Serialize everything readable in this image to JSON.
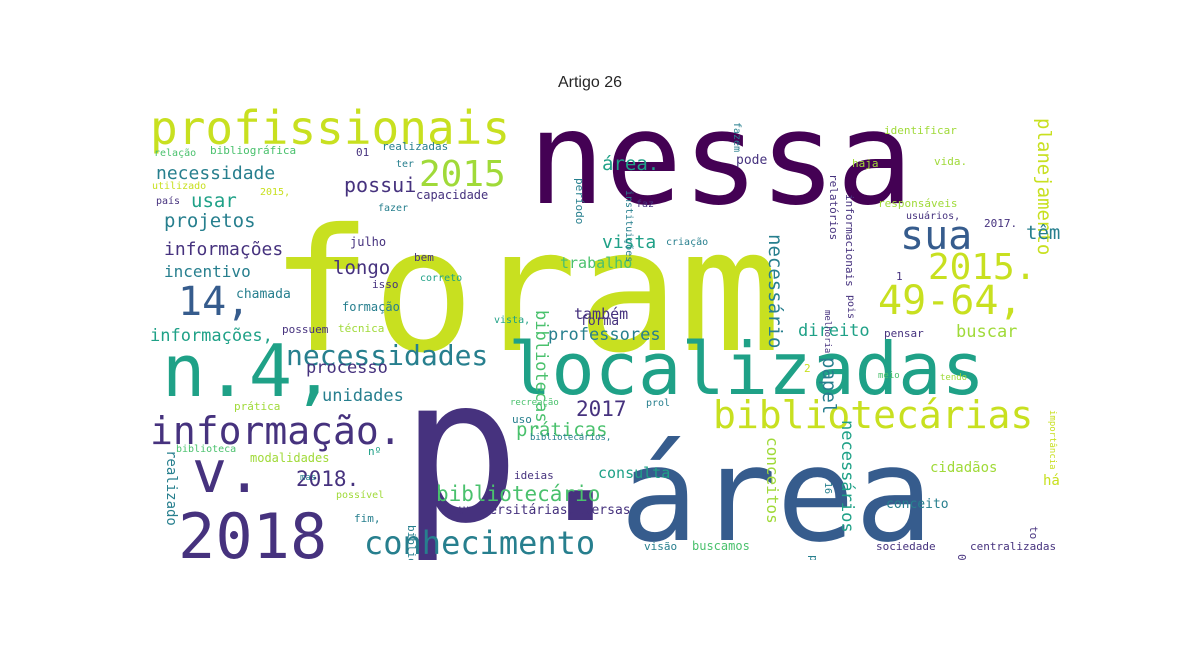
{
  "title": "Artigo 26",
  "colors": {
    "dark_purple": "#440154",
    "purple": "#46327e",
    "blue": "#365c8d",
    "steel": "#277f8e",
    "teal": "#1fa187",
    "green": "#4ac16d",
    "lime": "#a0da39",
    "yellow": "#c8e020"
  },
  "words": [
    {
      "text": "foram",
      "color": "yellow"
    },
    {
      "text": "nessa",
      "color": "dark_purple"
    },
    {
      "text": "p.",
      "color": "purple"
    },
    {
      "text": "área",
      "color": "blue"
    },
    {
      "text": "localizadas",
      "color": "teal"
    },
    {
      "text": "n.4,",
      "color": "teal"
    },
    {
      "text": "2018",
      "color": "purple"
    },
    {
      "text": "v.",
      "color": "purple"
    },
    {
      "text": "profissionais",
      "color": "yellow"
    },
    {
      "text": "bibliotecárias",
      "color": "yellow"
    },
    {
      "text": "49-64,",
      "color": "yellow"
    },
    {
      "text": "informação.",
      "color": "purple"
    },
    {
      "text": "conhecimento",
      "color": "steel"
    },
    {
      "text": "necessidades",
      "color": "steel"
    },
    {
      "text": "2015",
      "color": "lime"
    },
    {
      "text": "2015.",
      "color": "yellow"
    },
    {
      "text": "14,",
      "color": "blue"
    },
    {
      "text": "sua",
      "color": "blue"
    },
    {
      "text": "bibliotecário",
      "color": "green"
    },
    {
      "text": "planejamento",
      "color": "yellow"
    },
    {
      "text": "2018.",
      "color": "purple"
    },
    {
      "text": "2017",
      "color": "purple"
    },
    {
      "text": "necessidade",
      "color": "steel"
    },
    {
      "text": "usar",
      "color": "teal"
    },
    {
      "text": "projetos",
      "color": "steel"
    },
    {
      "text": "informações",
      "color": "purple"
    },
    {
      "text": "incentivo",
      "color": "steel"
    },
    {
      "text": "chamada",
      "color": "steel"
    },
    {
      "text": "informações,",
      "color": "teal"
    },
    {
      "text": "possui",
      "color": "purple"
    },
    {
      "text": "longo",
      "color": "purple"
    },
    {
      "text": "processo",
      "color": "purple"
    },
    {
      "text": "unidades",
      "color": "steel"
    },
    {
      "text": "práticas",
      "color": "green"
    },
    {
      "text": "vista",
      "color": "teal"
    },
    {
      "text": "trabalho",
      "color": "green"
    },
    {
      "text": "forma",
      "color": "purple"
    },
    {
      "text": "também",
      "color": "purple"
    },
    {
      "text": "professores",
      "color": "steel"
    },
    {
      "text": "área.",
      "color": "teal"
    },
    {
      "text": "pode",
      "color": "purple"
    },
    {
      "text": "necessário",
      "color": "steel"
    },
    {
      "text": "bibliotecas.",
      "color": "green"
    },
    {
      "text": "direito",
      "color": "teal"
    },
    {
      "text": "buscar",
      "color": "lime"
    },
    {
      "text": "conceitos",
      "color": "lime"
    },
    {
      "text": "papel",
      "color": "steel"
    },
    {
      "text": "necessários",
      "color": "teal"
    },
    {
      "text": "consulta",
      "color": "teal"
    },
    {
      "text": "têm",
      "color": "steel"
    },
    {
      "text": "realizado",
      "color": "steel"
    },
    {
      "text": "universitárias,",
      "color": "purple"
    },
    {
      "text": "diversas",
      "color": "purple"
    },
    {
      "text": "cidadãos",
      "color": "lime"
    },
    {
      "text": "conceito",
      "color": "steel"
    },
    {
      "text": "há",
      "color": "yellow"
    },
    {
      "text": "visão",
      "color": "steel"
    },
    {
      "text": "buscamos",
      "color": "green"
    },
    {
      "text": "sociedade",
      "color": "purple"
    },
    {
      "text": "centralizadas",
      "color": "purple"
    },
    {
      "text": "profissional",
      "color": "steel"
    },
    {
      "text": "relação",
      "color": "green"
    },
    {
      "text": "bibliográfica",
      "color": "green"
    },
    {
      "text": "01",
      "color": "purple"
    },
    {
      "text": "realizadas",
      "color": "steel"
    },
    {
      "text": "capacidade",
      "color": "purple"
    },
    {
      "text": "fazer",
      "color": "steel"
    },
    {
      "text": "julho",
      "color": "purple"
    },
    {
      "text": "bem",
      "color": "purple"
    },
    {
      "text": "isso",
      "color": "purple"
    },
    {
      "text": "formação",
      "color": "steel"
    },
    {
      "text": "possuem",
      "color": "purple"
    },
    {
      "text": "técnica",
      "color": "lime"
    },
    {
      "text": "prática",
      "color": "lime"
    },
    {
      "text": "biblioteca",
      "color": "green"
    },
    {
      "text": "modalidades",
      "color": "lime"
    },
    {
      "text": "mas",
      "color": "steel"
    },
    {
      "text": "nº",
      "color": "teal"
    },
    {
      "text": "possível",
      "color": "lime"
    },
    {
      "text": "fim,",
      "color": "steel"
    },
    {
      "text": "ideias",
      "color": "purple"
    },
    {
      "text": "uso",
      "color": "steel"
    },
    {
      "text": "bibliotecários,",
      "color": "steel"
    },
    {
      "text": "bibliotecárias,",
      "color": "steel"
    },
    {
      "text": "recreação",
      "color": "green"
    },
    {
      "text": "prol",
      "color": "steel"
    },
    {
      "text": "vista,",
      "color": "teal"
    },
    {
      "text": "correto",
      "color": "teal"
    },
    {
      "text": "criação",
      "color": "steel"
    },
    {
      "text": "período",
      "color": "steel"
    },
    {
      "text": "instituições",
      "color": "steel"
    },
    {
      "text": "fazem",
      "color": "steel"
    },
    {
      "text": "relatórios",
      "color": "purple"
    },
    {
      "text": "informacionais",
      "color": "purple"
    },
    {
      "text": "identificar",
      "color": "lime"
    },
    {
      "text": "haja",
      "color": "lime"
    },
    {
      "text": "vida.",
      "color": "lime"
    },
    {
      "text": "responsáveis",
      "color": "lime"
    },
    {
      "text": "usuários,",
      "color": "purple"
    },
    {
      "text": "2017.",
      "color": "purple"
    },
    {
      "text": "ter",
      "color": "steel"
    },
    {
      "text": "utilizado",
      "color": "yellow"
    },
    {
      "text": "2015,",
      "color": "yellow"
    },
    {
      "text": "país",
      "color": "purple"
    },
    {
      "text": "faz",
      "color": "purple"
    },
    {
      "text": "melhoria",
      "color": "purple"
    },
    {
      "text": "pois",
      "color": "purple"
    },
    {
      "text": "pensar",
      "color": "purple"
    },
    {
      "text": "meio",
      "color": "green"
    },
    {
      "text": "tendo",
      "color": "lime"
    },
    {
      "text": "importância",
      "color": "yellow"
    },
    {
      "text": "1",
      "color": "purple"
    },
    {
      "text": "2",
      "color": "yellow"
    },
    {
      "text": "16",
      "color": "steel"
    },
    {
      "text": "06",
      "color": "purple"
    },
    {
      "text": "to",
      "color": "purple"
    }
  ]
}
